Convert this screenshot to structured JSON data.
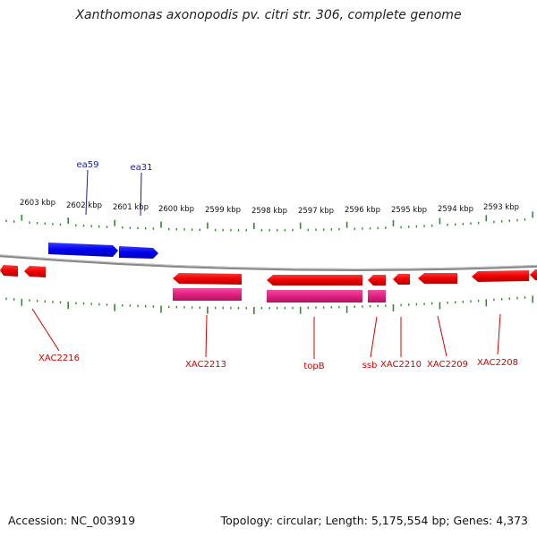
{
  "title": "Xanthomonas axonopodis pv. citri str. 306, complete genome",
  "colors": {
    "forward_gene": "#0000ee",
    "reverse_gene": "#ee0000",
    "rna_feature": "#e0217f",
    "tick": "#2e8b2e",
    "backbone": "#888888",
    "reverse_label": "#d40000",
    "forward_label": "#1a1aa0"
  },
  "scale_labels": [
    "2603 kbp",
    "2602 kbp",
    "2601 kbp",
    "2600 kbp",
    "2599 kbp",
    "2598 kbp",
    "2597 kbp",
    "2596 kbp",
    "2595 kbp",
    "2594 kbp",
    "2593 kbp"
  ],
  "forward_gene_labels": [
    "ea59",
    "ea31"
  ],
  "reverse_gene_labels": [
    "XAC2216",
    "XAC2213",
    "topB",
    "ssb",
    "XAC2210",
    "XAC2209",
    "XAC2208"
  ],
  "footer": {
    "accession": "Accession: NC_003919",
    "summary": "Topology: circular; Length: 5,175,554 bp; Genes: 4,373"
  }
}
